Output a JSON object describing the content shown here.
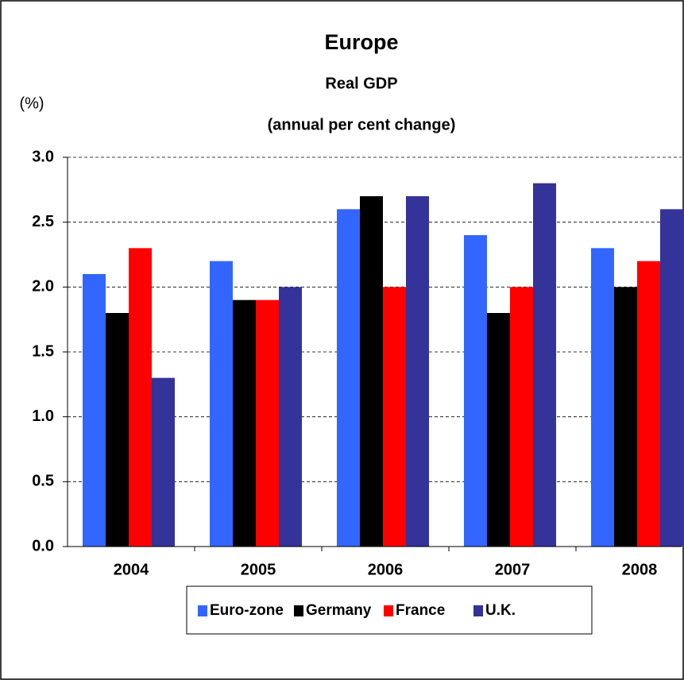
{
  "chart_data": {
    "type": "bar",
    "title": "Europe",
    "subtitle": "Real GDP",
    "subtitle2": "(annual per cent change)",
    "y_label": "(%)",
    "categories": [
      "2004",
      "2005",
      "2006",
      "2007",
      "2008"
    ],
    "series": [
      {
        "name": "Euro-zone",
        "color": "#3366ff",
        "values": [
          2.1,
          2.2,
          2.6,
          2.4,
          2.3
        ]
      },
      {
        "name": "Germany",
        "color": "#000000",
        "values": [
          1.8,
          1.9,
          2.7,
          1.8,
          2.0
        ]
      },
      {
        "name": "France",
        "color": "#ff0000",
        "values": [
          2.3,
          1.9,
          2.0,
          2.0,
          2.2
        ]
      },
      {
        "name": "U.K.",
        "color": "#333399",
        "values": [
          1.3,
          2.0,
          2.7,
          2.8,
          2.6
        ]
      }
    ],
    "ylim": [
      0,
      3
    ],
    "yticks": [
      {
        "value": 0,
        "label": "0.0"
      },
      0.5,
      {
        "value": 1,
        "label": "1.0"
      },
      1.5,
      {
        "value": 2,
        "label": "2.0"
      },
      2.5,
      {
        "value": 3,
        "label": "3.0"
      }
    ],
    "grid": true,
    "legend": "bottom"
  }
}
